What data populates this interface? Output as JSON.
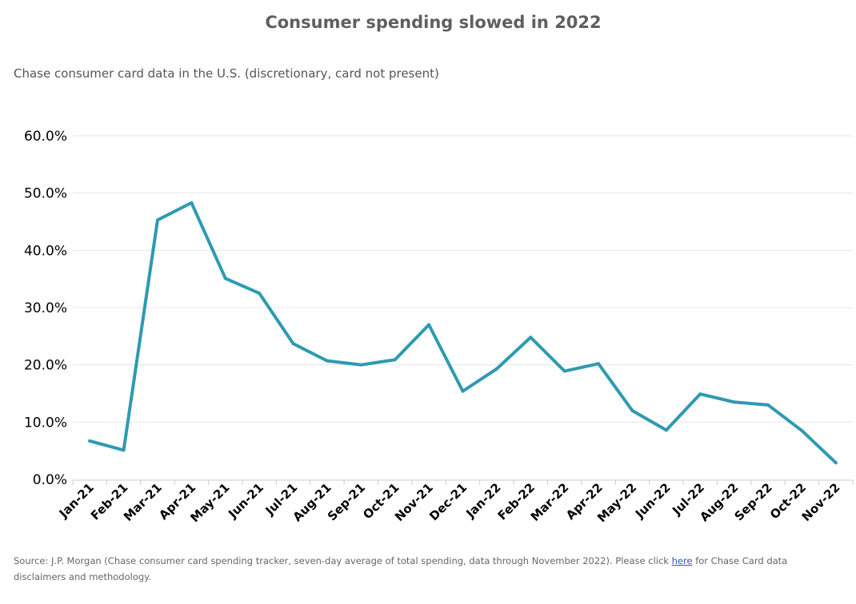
{
  "title": "Consumer spending slowed in 2022",
  "subtitle": "Chase consumer card data in the U.S. (discretionary, card not present)",
  "footer": {
    "text_before": "Source: J.P. Morgan (Chase consumer card spending tracker, seven-day average of total spending, data through November 2022). Please click ",
    "link_text": "here",
    "text_after": " for Chase Card data disclaimers and methodology."
  },
  "colors": {
    "line": "#2e9ab1",
    "grid": "#e6e6e6",
    "axis": "#cccccc",
    "tick_text": "#000000"
  },
  "chart_data": {
    "type": "line",
    "categories": [
      "Jan-21",
      "Feb-21",
      "Mar-21",
      "Apr-21",
      "May-21",
      "Jun-21",
      "Jul-21",
      "Aug-21",
      "Sep-21",
      "Oct-21",
      "Nov-21",
      "Dec-21",
      "Jan-22",
      "Feb-22",
      "Mar-22",
      "Apr-22",
      "May-22",
      "Jun-22",
      "Jul-22",
      "Aug-22",
      "Sep-22",
      "Oct-22",
      "Nov-22"
    ],
    "series": [
      {
        "values": [
          6.7,
          5.1,
          45.3,
          48.3,
          35.1,
          32.5,
          23.7,
          20.7,
          20.0,
          20.9,
          27.0,
          15.4,
          19.3,
          24.8,
          18.9,
          20.2,
          12.0,
          8.6,
          14.9,
          13.5,
          13.0,
          8.5,
          2.9
        ]
      }
    ],
    "yticks": [
      "0.0%",
      "10.0%",
      "20.0%",
      "30.0%",
      "40.0%",
      "50.0%",
      "60.0%"
    ],
    "ylim": [
      0,
      60
    ],
    "grid": true,
    "legend": "none"
  }
}
